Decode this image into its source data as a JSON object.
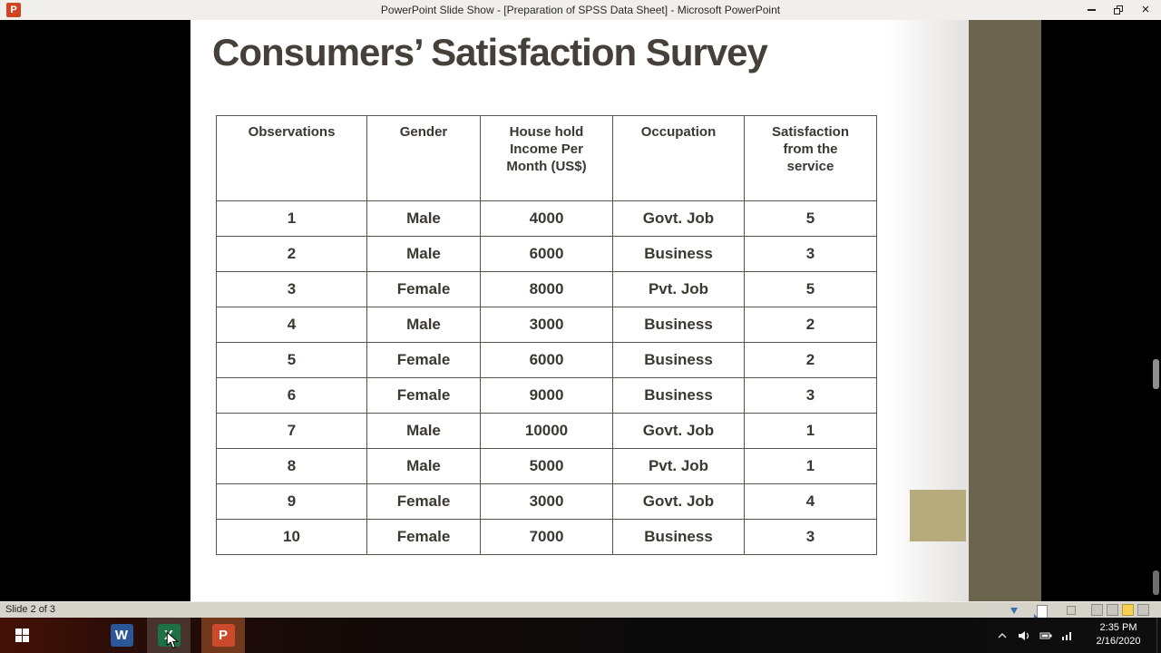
{
  "window": {
    "title": "PowerPoint Slide Show - [Preparation of SPSS Data Sheet] - Microsoft PowerPoint",
    "app_icon_glyph": "P",
    "close_glyph": "×"
  },
  "slide": {
    "title": "Consumers’ Satisfaction Survey",
    "table": {
      "headers": [
        "Observations",
        "Gender",
        "House hold\nIncome Per\nMonth (US$)",
        "Occupation",
        "Satisfaction\nfrom the\nservice"
      ],
      "rows": [
        [
          "1",
          "Male",
          "4000",
          "Govt. Job",
          "5"
        ],
        [
          "2",
          "Male",
          "6000",
          "Business",
          "3"
        ],
        [
          "3",
          "Female",
          "8000",
          "Pvt. Job",
          "5"
        ],
        [
          "4",
          "Male",
          "3000",
          "Business",
          "2"
        ],
        [
          "5",
          "Female",
          "6000",
          "Business",
          "2"
        ],
        [
          "6",
          "Female",
          "9000",
          "Business",
          "3"
        ],
        [
          "7",
          "Male",
          "10000",
          "Govt. Job",
          "1"
        ],
        [
          "8",
          "Male",
          "5000",
          "Pvt. Job",
          "1"
        ],
        [
          "9",
          "Female",
          "3000",
          "Govt. Job",
          "4"
        ],
        [
          "10",
          "Female",
          "7000",
          "Business",
          "3"
        ]
      ]
    },
    "theme_colors": {
      "right_band": "#6b654f",
      "accent_square": "#b5ab7c",
      "title_text": "#454039"
    }
  },
  "status_bar": {
    "slide_indicator": "Slide 2 of 3"
  },
  "taskbar": {
    "apps": [
      {
        "name": "word",
        "glyph": "W",
        "color": "#2b579a"
      },
      {
        "name": "excel",
        "glyph": "X",
        "color": "#1e7145"
      },
      {
        "name": "powerpoint",
        "glyph": "P",
        "color": "#cb4a2c"
      }
    ],
    "clock": {
      "time": "2:35 PM",
      "date": "2/16/2020"
    }
  }
}
